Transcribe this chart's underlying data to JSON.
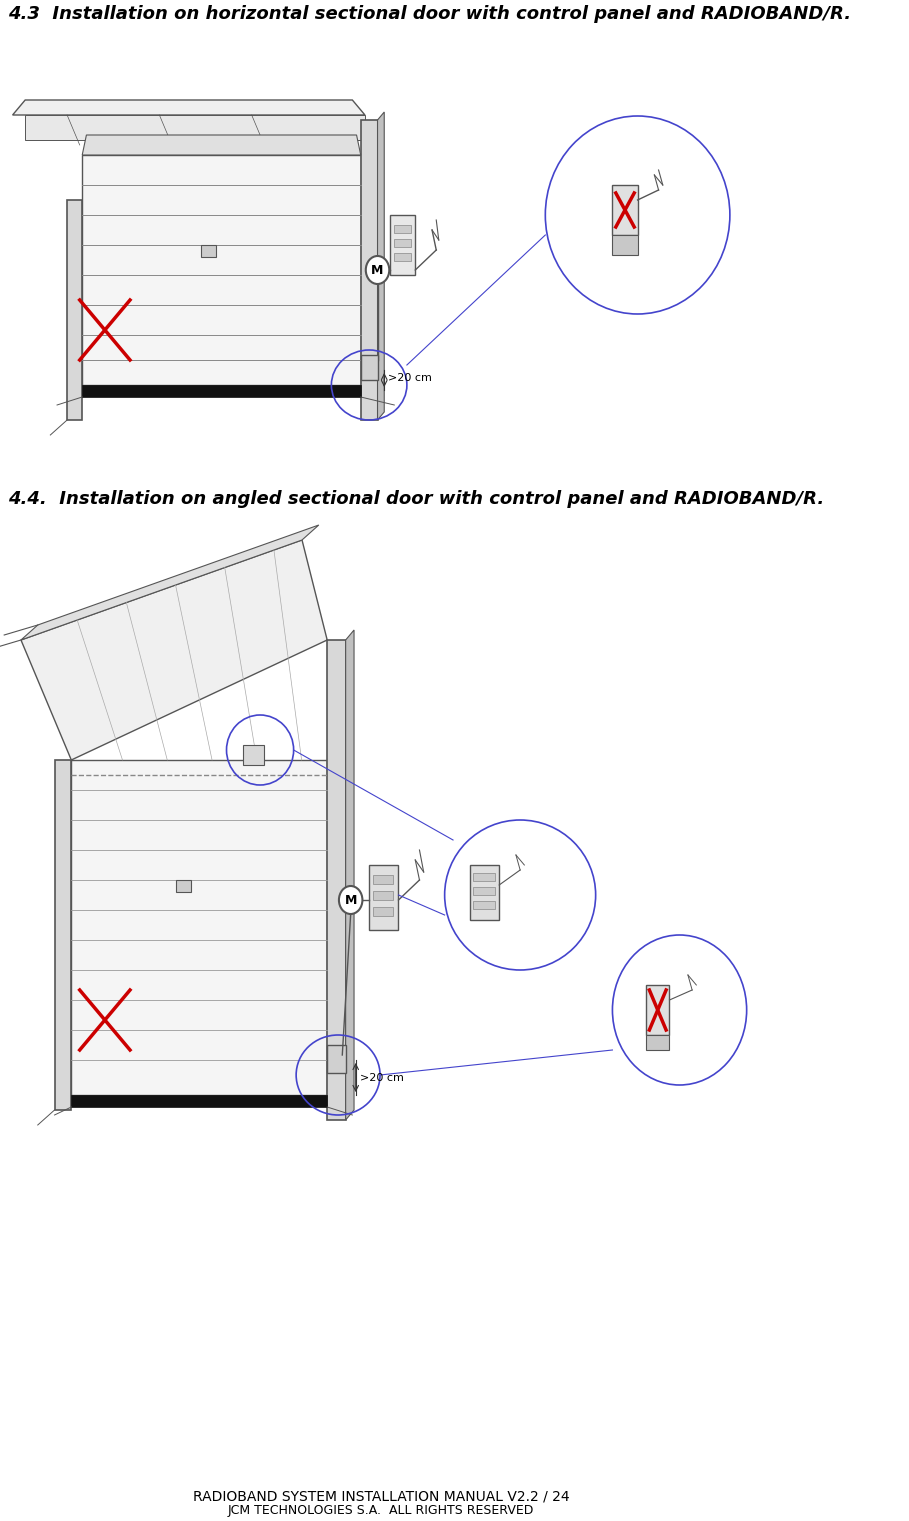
{
  "title1": "4.3  Installation on horizontal sectional door with control panel and RADIOBAND/R.",
  "title2": "4.4.  Installation on angled sectional door with control panel and RADIOBAND/R.",
  "footer_line1": "RADIOBAND SYSTEM INSTALLATION MANUAL V2.2 / 24",
  "footer_line2": "JCM TECHNOLOGIES S.A.  ALL RIGHTS RESERVED",
  "bg_color": "#ffffff",
  "text_color": "#000000",
  "title_fontsize": 13,
  "footer_fontsize": 10,
  "diagram_line_color": "#555555",
  "red_color": "#cc0000",
  "blue_color": "#4444cc",
  "label_20cm": ">20 cm"
}
